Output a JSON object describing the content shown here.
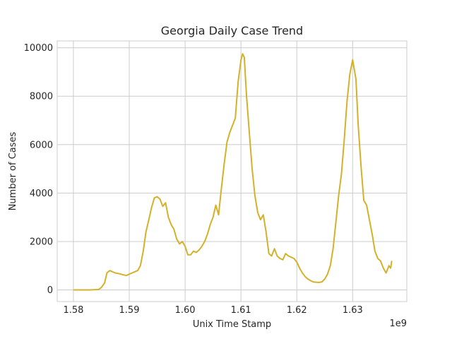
{
  "chart_data": {
    "type": "line",
    "title": "Georgia Daily Case Trend",
    "xlabel": "Unix Time Stamp",
    "ylabel": "Number of Cases",
    "x_offset_label": "1e9",
    "x_ticks": [
      1.58,
      1.59,
      1.6,
      1.61,
      1.62,
      1.63
    ],
    "x_tick_labels": [
      "1.58",
      "1.59",
      "1.60",
      "1.61",
      "1.62",
      "1.63"
    ],
    "y_ticks": [
      0,
      2000,
      4000,
      6000,
      8000,
      10000
    ],
    "y_tick_labels": [
      "0",
      "2000",
      "4000",
      "6000",
      "8000",
      "10000"
    ],
    "xlim": [
      1.5771,
      1.6397
    ],
    "ylim": [
      -480,
      10280
    ],
    "grid": true,
    "line_color": "#d4b12a",
    "series": [
      {
        "x": [
          1.58,
          1.583,
          1.5845,
          1.585,
          1.5856,
          1.586,
          1.5865,
          1.587,
          1.5875,
          1.588,
          1.5885,
          1.589,
          1.5895,
          1.59,
          1.5905,
          1.591,
          1.5915,
          1.592,
          1.5925,
          1.593,
          1.5935,
          1.594,
          1.5945,
          1.595,
          1.5955,
          1.596,
          1.5965,
          1.597,
          1.5975,
          1.598,
          1.5985,
          1.599,
          1.5995,
          1.6,
          1.6005,
          1.601,
          1.6015,
          1.602,
          1.6025,
          1.603,
          1.6035,
          1.604,
          1.6045,
          1.605,
          1.6055,
          1.606,
          1.6065,
          1.607,
          1.6075,
          1.608,
          1.6085,
          1.609,
          1.6095,
          1.61,
          1.6103,
          1.6106,
          1.611,
          1.6115,
          1.612,
          1.6125,
          1.613,
          1.6135,
          1.614,
          1.6145,
          1.615,
          1.6155,
          1.616,
          1.6165,
          1.617,
          1.6175,
          1.618,
          1.6185,
          1.619,
          1.6195,
          1.62,
          1.6205,
          1.621,
          1.6215,
          1.622,
          1.6225,
          1.623,
          1.6235,
          1.624,
          1.6245,
          1.625,
          1.6255,
          1.626,
          1.6265,
          1.627,
          1.6275,
          1.628,
          1.6285,
          1.629,
          1.6295,
          1.63,
          1.6303,
          1.6306,
          1.631,
          1.6315,
          1.632,
          1.6325,
          1.633,
          1.6335,
          1.634,
          1.6345,
          1.635,
          1.6355,
          1.636,
          1.6365,
          1.6368,
          1.637
        ],
        "y": [
          0,
          0,
          20,
          100,
          300,
          700,
          800,
          750,
          700,
          680,
          650,
          620,
          600,
          650,
          700,
          750,
          800,
          1000,
          1600,
          2400,
          2900,
          3400,
          3800,
          3850,
          3750,
          3450,
          3600,
          3000,
          2700,
          2500,
          2100,
          1900,
          2000,
          1800,
          1450,
          1450,
          1600,
          1550,
          1650,
          1800,
          2000,
          2300,
          2700,
          3000,
          3500,
          3100,
          4200,
          5200,
          6100,
          6500,
          6800,
          7100,
          8600,
          9500,
          9750,
          9600,
          8000,
          6500,
          5000,
          3900,
          3200,
          2900,
          3100,
          2400,
          1500,
          1400,
          1700,
          1400,
          1300,
          1250,
          1500,
          1400,
          1350,
          1300,
          1150,
          900,
          700,
          550,
          450,
          380,
          330,
          320,
          310,
          330,
          450,
          650,
          1000,
          1700,
          2800,
          3900,
          4800,
          6200,
          7800,
          8900,
          9500,
          9100,
          8700,
          6800,
          5100,
          3700,
          3500,
          2900,
          2300,
          1600,
          1300,
          1200,
          900,
          700,
          1000,
          900,
          1200
        ]
      }
    ]
  }
}
